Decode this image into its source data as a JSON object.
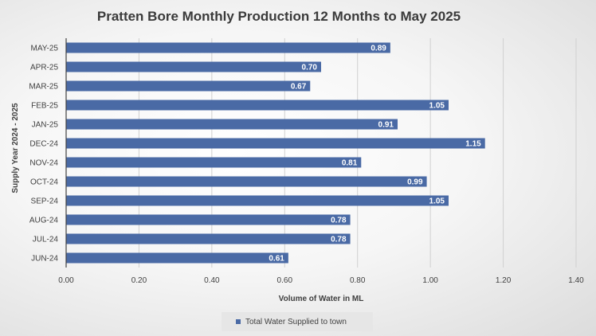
{
  "chart_data": {
    "type": "bar",
    "orientation": "horizontal",
    "title": "Pratten Bore Monthly Production 12 Months to May 2025",
    "xlabel": "Volume of Water in ML",
    "ylabel": "Supply Year 2024 - 2025",
    "categories": [
      "MAY-25",
      "APR-25",
      "MAR-25",
      "FEB-25",
      "JAN-25",
      "DEC-24",
      "NOV-24",
      "OCT-24",
      "SEP-24",
      "AUG-24",
      "JUL-24",
      "JUN-24"
    ],
    "series": [
      {
        "name": "Total Water Supplied to town",
        "values": [
          0.89,
          0.7,
          0.67,
          1.05,
          0.91,
          1.15,
          0.81,
          0.99,
          1.05,
          0.78,
          0.78,
          0.61
        ],
        "labels": [
          "0.89",
          "0.70",
          "0.67",
          "1.05",
          "0.91",
          "1.15",
          "0.81",
          "0.99",
          "1.05",
          "0.78",
          "0.78",
          "0.61"
        ]
      }
    ],
    "xlim": [
      0,
      1.4
    ],
    "xticks": [
      "0.00",
      "0.20",
      "0.40",
      "0.60",
      "0.80",
      "1.00",
      "1.20",
      "1.40"
    ],
    "grid": true,
    "legend_position": "bottom",
    "bar_color": "#4a6aa5"
  }
}
